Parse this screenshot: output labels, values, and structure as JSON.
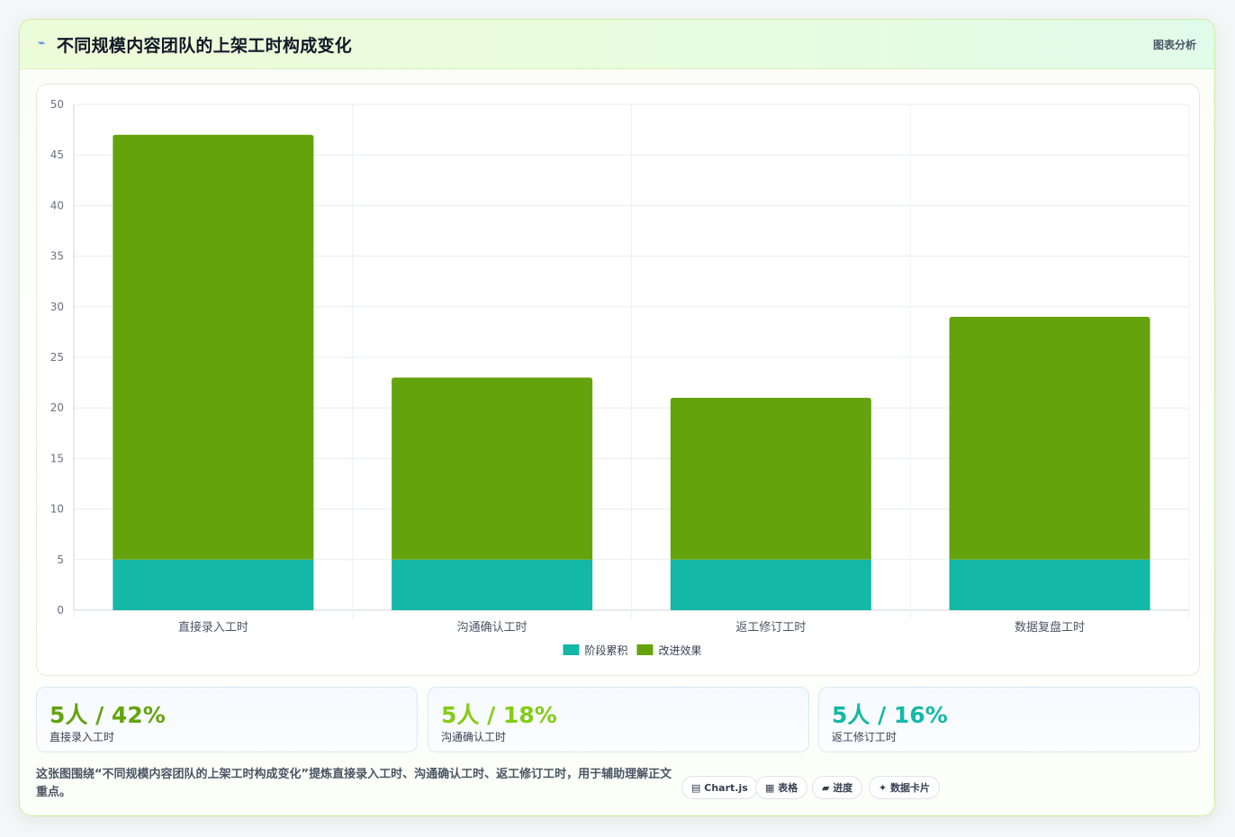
{
  "header": {
    "icon": "chart-line-icon",
    "title": "不同规模内容团队的上架工时构成变化",
    "badge": "图表分析"
  },
  "chart_data": {
    "type": "bar",
    "stacked": true,
    "categories": [
      "直接录入工时",
      "沟通确认工时",
      "返工修订工时",
      "数据复盘工时"
    ],
    "series": [
      {
        "name": "阶段累积",
        "color": "#14b8a6",
        "values": [
          5,
          5,
          5,
          5
        ]
      },
      {
        "name": "改进效果",
        "color": "#65a30d",
        "values": [
          42,
          18,
          16,
          24
        ]
      }
    ],
    "ylim": [
      0,
      50
    ],
    "yticks": [
      0,
      5,
      10,
      15,
      20,
      25,
      30,
      35,
      40,
      45,
      50
    ],
    "grid": true,
    "legend": "bottom"
  },
  "stats": [
    {
      "value": "5人 / 42%",
      "label": "直接录入工时",
      "color": "#65a30d"
    },
    {
      "value": "5人 / 18%",
      "label": "沟通确认工时",
      "color": "#84cc16"
    },
    {
      "value": "5人 / 16%",
      "label": "返工修订工时",
      "color": "#14b8a6"
    }
  ],
  "footer": {
    "text": "这张图围绕“不同规模内容团队的上架工时构成变化”提炼直接录入工时、沟通确认工时、返工修订工时，用于辅助理解正文重点。",
    "tags": [
      {
        "icon": "chart-icon",
        "glyph": "▤",
        "label": "Chart.js"
      },
      {
        "icon": "table-icon",
        "glyph": "▦",
        "label": "表格"
      },
      {
        "icon": "progress-icon",
        "glyph": "▰",
        "label": "进度"
      },
      {
        "icon": "sparkle-icon",
        "glyph": "✦",
        "label": "数据卡片"
      }
    ]
  }
}
